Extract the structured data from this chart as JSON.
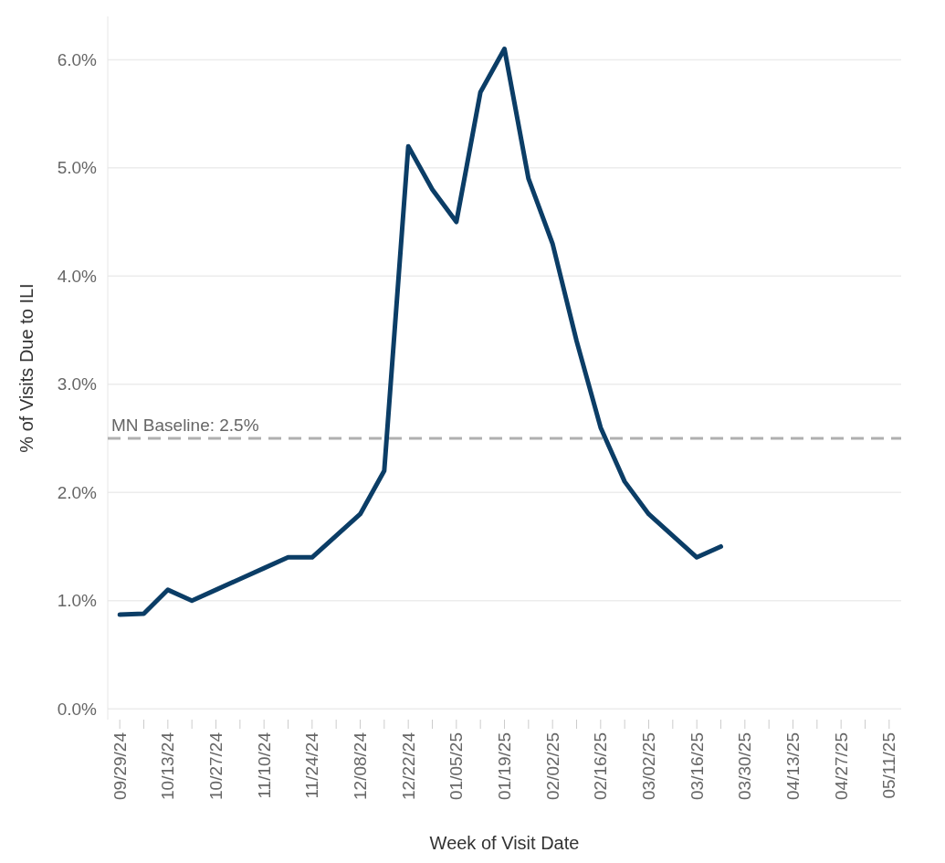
{
  "chart_data": {
    "type": "line",
    "xlabel": "Week of Visit Date",
    "ylabel": "% of Visits Due to ILI",
    "categories": [
      "09/29/24",
      null,
      "10/13/24",
      null,
      "10/27/24",
      null,
      "11/10/24",
      null,
      "11/24/24",
      null,
      "12/08/24",
      null,
      "12/22/24",
      null,
      "01/05/25",
      null,
      "01/19/25",
      null,
      "02/02/25",
      null,
      "02/16/25",
      null,
      "03/02/25",
      null,
      "03/16/25",
      null,
      "03/30/25",
      null,
      "04/13/25",
      null,
      "04/27/25",
      null,
      "05/11/25"
    ],
    "series": [
      {
        "color": "#0b3d66",
        "values": [
          0.87,
          0.88,
          1.1,
          1.0,
          1.1,
          1.2,
          1.3,
          1.4,
          1.4,
          1.6,
          1.8,
          2.2,
          5.2,
          4.8,
          4.5,
          5.7,
          6.1,
          4.9,
          4.3,
          3.4,
          2.6,
          2.1,
          1.8,
          1.6,
          1.4,
          1.5,
          null,
          null,
          null,
          null,
          null,
          null,
          null
        ]
      }
    ],
    "ylim": [
      -0.1,
      6.4
    ],
    "yticks": [
      {
        "value": 0,
        "label": "0.0%"
      },
      {
        "value": 1,
        "label": "1.0%"
      },
      {
        "value": 2,
        "label": "2.0%"
      },
      {
        "value": 3,
        "label": "3.0%"
      },
      {
        "value": 4,
        "label": "4.0%"
      },
      {
        "value": 5,
        "label": "5.0%"
      },
      {
        "value": 6,
        "label": "6.0%"
      }
    ],
    "grid": "y",
    "marker": "none",
    "line_style": "solid",
    "ref_lines": [
      {
        "axis": "y",
        "value": 2.5,
        "label": "MN Baseline: 2.5%",
        "color": "#b0b0b0",
        "line_style": "dashed"
      }
    ]
  }
}
